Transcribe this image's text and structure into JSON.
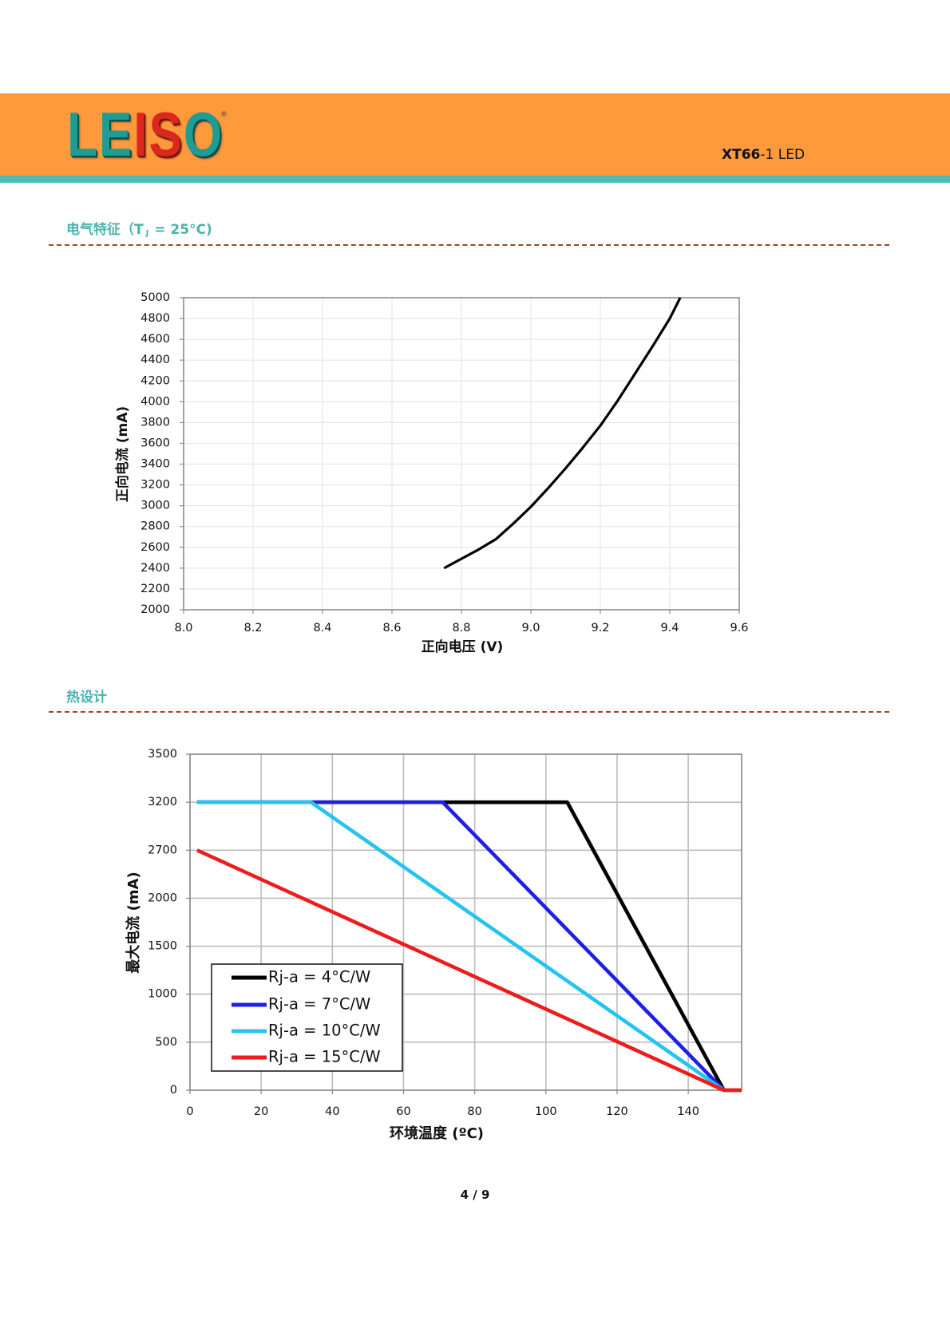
{
  "header": {
    "logo_letters": [
      "L",
      "E",
      "I",
      "S",
      "O"
    ],
    "logo_reg": "®",
    "model_bold": "XT66",
    "model_rest": "-1 LED"
  },
  "colors": {
    "header_band": "#FF9A3C",
    "header_stripe": "#4DBCB5",
    "section_title": "#49B3AB",
    "divider": "#A4471E"
  },
  "sections": [
    {
      "title_pre": "电气特征（T",
      "title_sub": "J",
      "title_post": " = 25°C)"
    },
    {
      "title": "热设计"
    }
  ],
  "chart_data": [
    {
      "type": "line",
      "title": "",
      "xlabel": "正向电压 (V)",
      "ylabel": "正向电流 (mA)",
      "xlim": [
        8.0,
        9.6
      ],
      "ylim": [
        2000,
        5000
      ],
      "xticks": [
        "8.0",
        "8.2",
        "8.4",
        "8.6",
        "8.8",
        "9.0",
        "9.2",
        "9.4",
        "9.6"
      ],
      "yticks": [
        "2000",
        "2200",
        "2400",
        "2600",
        "2800",
        "3000",
        "3200",
        "3400",
        "3600",
        "3800",
        "4000",
        "4200",
        "4400",
        "4600",
        "4800",
        "5000"
      ],
      "grid": true,
      "series": [
        {
          "color": "#000000",
          "x": [
            8.75,
            8.8,
            8.85,
            8.9,
            8.95,
            9.0,
            9.05,
            9.1,
            9.15,
            9.2,
            9.25,
            9.3,
            9.35,
            9.4,
            9.43
          ],
          "y": [
            2400,
            2490,
            2580,
            2680,
            2830,
            2990,
            3170,
            3360,
            3560,
            3770,
            4010,
            4270,
            4530,
            4800,
            5000
          ]
        }
      ]
    },
    {
      "type": "line",
      "title": "",
      "xlabel": "环境温度 (ºC)",
      "ylabel": "最大电流 (mA)",
      "xlim": [
        0,
        155
      ],
      "ylim": [
        0,
        3500
      ],
      "xticks": [
        "0",
        "20",
        "40",
        "60",
        "80",
        "100",
        "120",
        "140"
      ],
      "yticks": [
        "0",
        "500",
        "1000",
        "1500",
        "2000",
        "2700",
        "3200",
        "3500"
      ],
      "grid": true,
      "legend": "lower-left",
      "series": [
        {
          "name": "Rj-a = 4°C/W",
          "color": "#000000",
          "x": [
            2,
            106,
            150,
            155
          ],
          "y": [
            3200,
            3200,
            0,
            0
          ]
        },
        {
          "name": "Rj-a = 7°C/W",
          "color": "#1F1FE6",
          "x": [
            2,
            71,
            150
          ],
          "y": [
            3200,
            3200,
            0
          ]
        },
        {
          "name": "Rj-a = 10°C/W",
          "color": "#24C3F0",
          "x": [
            2,
            34,
            150
          ],
          "y": [
            3200,
            3200,
            0
          ]
        },
        {
          "name": "Rj-a = 15°C/W",
          "color": "#EE1C1C",
          "x": [
            2,
            150,
            155
          ],
          "y": [
            2700,
            0,
            0
          ]
        }
      ]
    }
  ],
  "footer": {
    "page_number": "4 / 9"
  }
}
